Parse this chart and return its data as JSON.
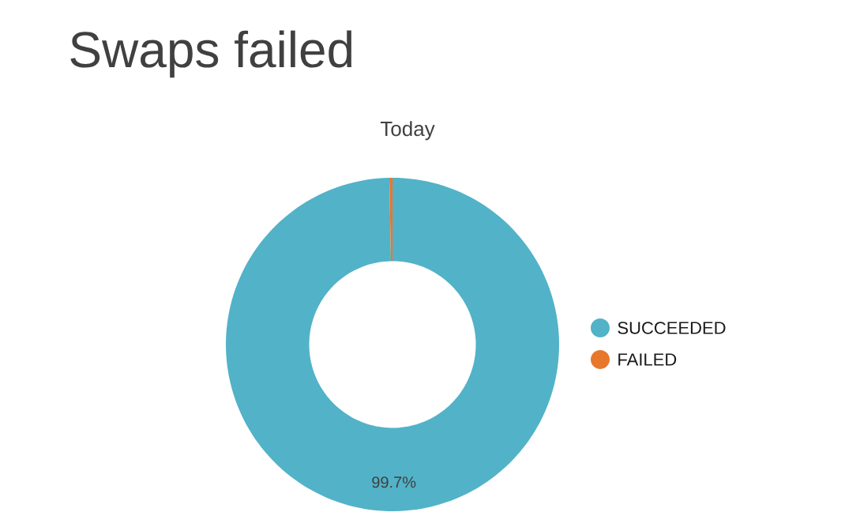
{
  "chart_data": {
    "type": "donut",
    "title": "Swaps failed",
    "subtitle": "Today",
    "categories": [
      "SUCCEEDED",
      "FAILED"
    ],
    "values": [
      99.7,
      0.3
    ],
    "colors": [
      "#52b2c8",
      "#e8772e"
    ],
    "value_labels": [
      "99.7%",
      null
    ],
    "legend": "right"
  }
}
